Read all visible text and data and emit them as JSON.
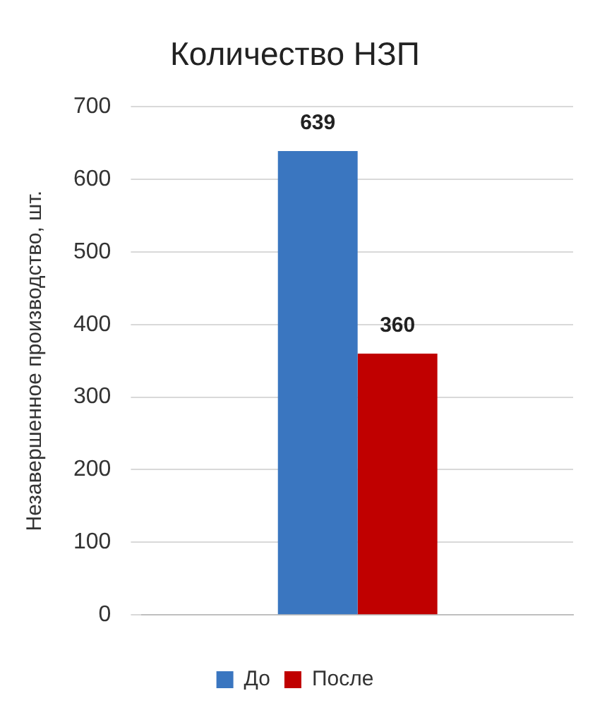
{
  "chart_data": {
    "type": "bar",
    "title": "Количество НЗП",
    "ylabel": "Незавершенное производство, шт.",
    "categories": [
      null
    ],
    "series": [
      {
        "name": "До",
        "color": "#3a76c0",
        "values": [
          639
        ]
      },
      {
        "name": "После",
        "color": "#c00000",
        "values": [
          360
        ]
      }
    ],
    "ylim": [
      0,
      700
    ],
    "yticks": [
      0,
      100,
      200,
      300,
      400,
      500,
      600,
      700
    ],
    "grid": "y",
    "legend": "bottom",
    "data_labels": true
  }
}
